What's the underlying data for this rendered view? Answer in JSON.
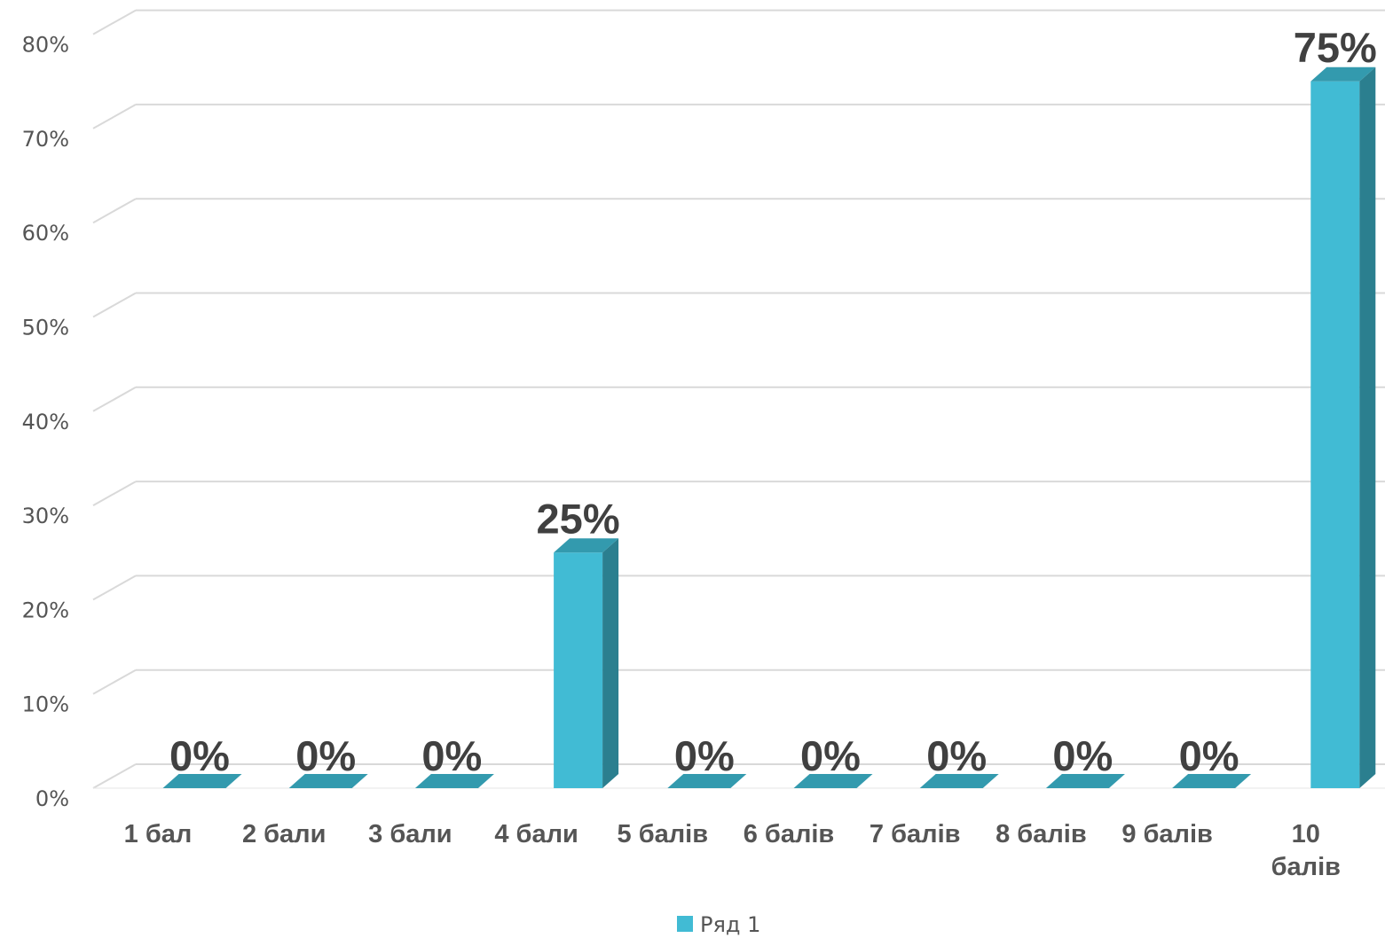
{
  "chart_data": {
    "type": "bar",
    "categories": [
      "1 бал",
      "2 бали",
      "3 бали",
      "4 бали",
      "5 балів",
      "6 балів",
      "7 балів",
      "8 балів",
      "9 балів",
      "10 балів"
    ],
    "series": [
      {
        "name": "Ряд 1",
        "values": [
          0,
          0,
          0,
          25,
          0,
          0,
          0,
          0,
          0,
          75
        ],
        "color": "#41BBD4",
        "side_color": "#2B7F8F",
        "top_color": "#339AAE"
      }
    ],
    "data_labels": [
      "0%",
      "0%",
      "0%",
      "25%",
      "0%",
      "0%",
      "0%",
      "0%",
      "0%",
      "75%"
    ],
    "y_ticks": [
      "0%",
      "10%",
      "20%",
      "30%",
      "40%",
      "50%",
      "60%",
      "70%",
      "80%"
    ],
    "y_tick_values": [
      0,
      10,
      20,
      30,
      40,
      50,
      60,
      70,
      80
    ],
    "ylim": [
      0,
      80
    ],
    "grid": true,
    "three_d": true,
    "legend": {
      "position": "bottom",
      "label": "Ряд 1"
    },
    "title": "",
    "xlabel": "",
    "ylabel": ""
  }
}
